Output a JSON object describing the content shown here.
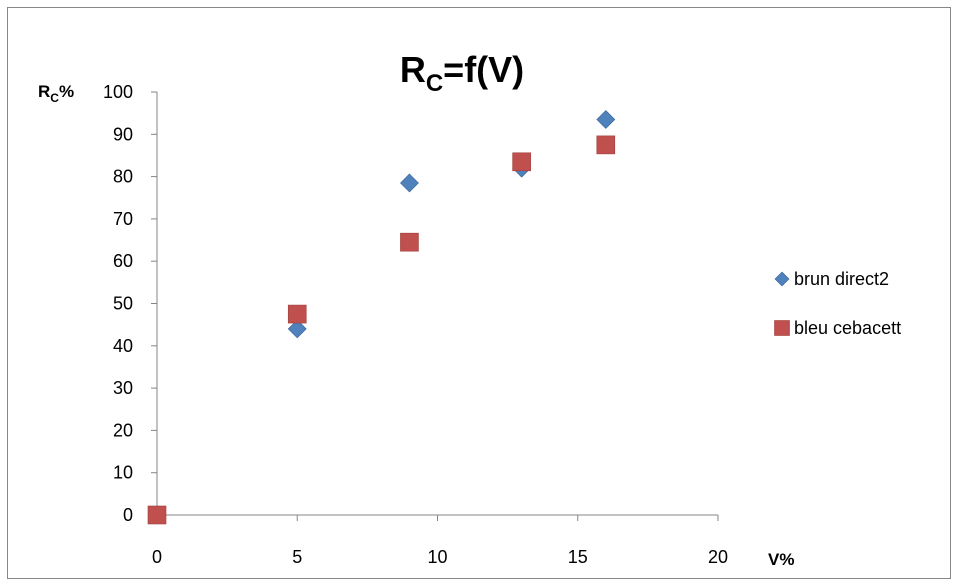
{
  "chart_data": {
    "type": "scatter",
    "title": {
      "main": "R",
      "sub": "C",
      "rest": "=f(V)"
    },
    "ylabel": {
      "main": "R",
      "sub": "C",
      "rest": "%"
    },
    "xlabel": "V%",
    "xlim": [
      0,
      20
    ],
    "ylim": [
      0,
      100
    ],
    "xticks": [
      0,
      5,
      10,
      15,
      20
    ],
    "yticks": [
      0,
      10,
      20,
      30,
      40,
      50,
      60,
      70,
      80,
      90,
      100
    ],
    "grid": false,
    "legend_position": "right",
    "series": [
      {
        "name": "brun direct2",
        "marker": "diamond",
        "color": "#4F81BD",
        "points": [
          [
            0,
            0
          ],
          [
            5,
            44
          ],
          [
            9,
            78.5
          ],
          [
            13,
            82
          ],
          [
            16,
            93.5
          ]
        ]
      },
      {
        "name": "bleu cebacett",
        "marker": "square",
        "color": "#C0504D",
        "points": [
          [
            0,
            0
          ],
          [
            5,
            47.5
          ],
          [
            9,
            64.5
          ],
          [
            13,
            83.5
          ],
          [
            16,
            87.5
          ]
        ]
      }
    ]
  }
}
